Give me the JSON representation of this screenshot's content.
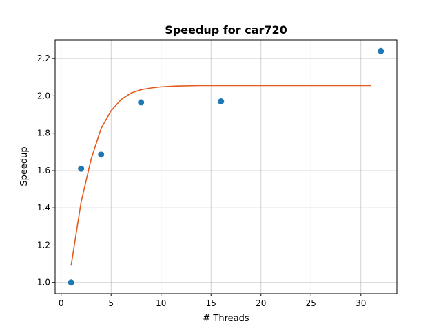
{
  "chart_data": {
    "type": "scatter",
    "title": "Speedup for car720",
    "xlabel": "# Threads",
    "ylabel": "Speedup",
    "xlim": [
      -0.6,
      33.6
    ],
    "ylim": [
      0.94,
      2.3
    ],
    "xticks": [
      0,
      5,
      10,
      15,
      20,
      25,
      30
    ],
    "yticks": [
      1.0,
      1.2,
      1.4,
      1.6,
      1.8,
      2.0,
      2.2
    ],
    "ytick_labels": [
      "1.0",
      "1.2",
      "1.4",
      "1.6",
      "1.8",
      "2.0",
      "2.2"
    ],
    "grid": true,
    "series": [
      {
        "kind": "scatter",
        "color": "#1f77b4",
        "x": [
          1,
          2,
          4,
          8,
          16,
          32
        ],
        "y": [
          1.0,
          1.61,
          1.685,
          1.965,
          1.97,
          2.24
        ]
      },
      {
        "kind": "line",
        "color": "#e4581a",
        "x": [
          1,
          2,
          3,
          4,
          5,
          6,
          7,
          8,
          9,
          10,
          11,
          12,
          13,
          14,
          15,
          16,
          17,
          18,
          19,
          20,
          21,
          22,
          23,
          24,
          25,
          26,
          27,
          28,
          29,
          30,
          31
        ],
        "y": [
          1.09,
          1.43,
          1.66,
          1.825,
          1.92,
          1.98,
          2.015,
          2.033,
          2.042,
          2.048,
          2.051,
          2.053,
          2.054,
          2.055,
          2.055,
          2.055,
          2.055,
          2.055,
          2.055,
          2.055,
          2.055,
          2.055,
          2.055,
          2.055,
          2.055,
          2.055,
          2.055,
          2.055,
          2.055,
          2.055,
          2.055
        ]
      }
    ]
  }
}
